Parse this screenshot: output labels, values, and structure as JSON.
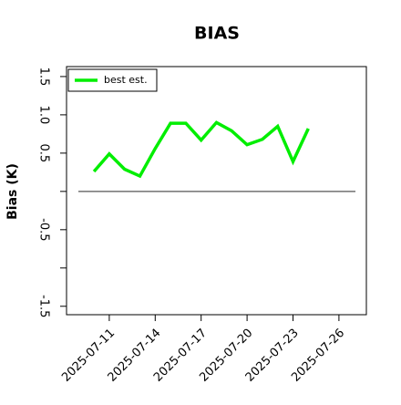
{
  "chart_data": {
    "type": "line",
    "title": "BIAS",
    "y_label": "Bias (K)",
    "x": [
      "2025-07-10",
      "2025-07-11",
      "2025-07-12",
      "2025-07-13",
      "2025-07-14",
      "2025-07-15",
      "2025-07-16",
      "2025-07-17",
      "2025-07-18",
      "2025-07-19",
      "2025-07-20",
      "2025-07-21",
      "2025-07-22",
      "2025-07-23",
      "2025-07-24"
    ],
    "series": [
      {
        "name": "best est.",
        "color": "#00ee00",
        "values": [
          0.26,
          0.49,
          0.29,
          0.2,
          0.56,
          0.89,
          0.89,
          0.67,
          0.9,
          0.79,
          0.61,
          0.68,
          0.85,
          0.39,
          0.82
        ]
      }
    ],
    "xlim": [
      "2025-07-08T05:00",
      "2025-07-27T19:00"
    ],
    "xticks": [
      "2025-07-11",
      "2025-07-14",
      "2025-07-17",
      "2025-07-20",
      "2025-07-23",
      "2025-07-26"
    ],
    "ylim": [
      -1.61,
      1.63
    ],
    "yticks": [
      1.5,
      {
        "value": 1,
        "label": "1.0"
      },
      0.5,
      -0.5,
      -1.5
    ],
    "minor_yticks": [
      0,
      -1
    ],
    "reference_line": {
      "y": 0,
      "color": "#555555"
    },
    "legend": "upper left"
  }
}
